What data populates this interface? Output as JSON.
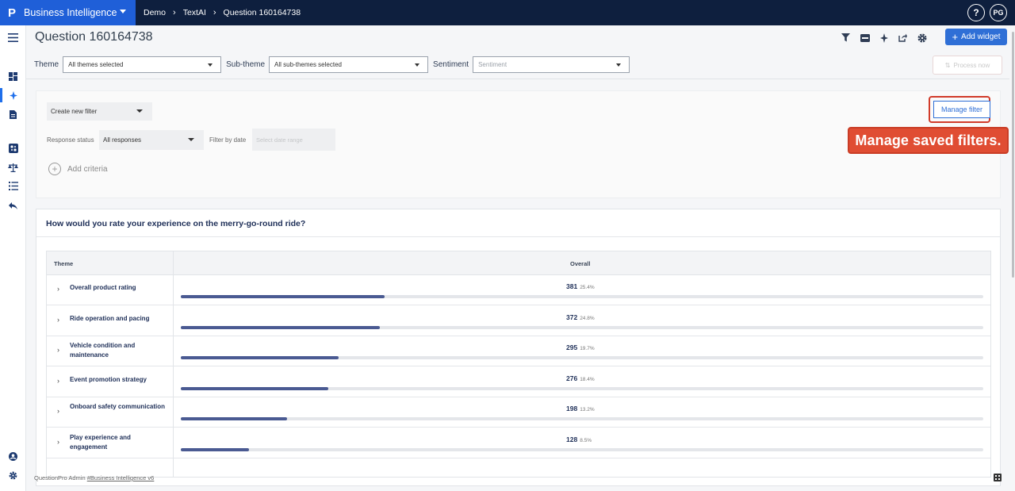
{
  "topbar": {
    "logo": "P",
    "app_name": "Business Intelligence",
    "breadcrumbs": [
      "Demo",
      "TextAI",
      "Question 160164738"
    ],
    "help": "?",
    "avatar": "PG"
  },
  "sidebar": {
    "icons": [
      "menu-icon",
      "dashboard-icon",
      "sparkle-icon",
      "report-icon",
      "ml-icon",
      "scale-icon",
      "list-icon",
      "back-icon",
      "admin-icon",
      "settings-icon"
    ]
  },
  "header": {
    "title": "Question 160164738",
    "add_widget": "Add widget",
    "process_now": "Process now",
    "toolbar_icons": [
      "filter-icon",
      "csv-icon",
      "sparkle-icon",
      "share-icon",
      "gear-icon"
    ]
  },
  "filters": {
    "theme_label": "Theme",
    "theme_value": "All themes selected",
    "subtheme_label": "Sub-theme",
    "subtheme_value": "All sub-themes selected",
    "sentiment_label": "Sentiment",
    "sentiment_placeholder": "Sentiment"
  },
  "filter_panel": {
    "create_new": "Create new filter",
    "response_status_label": "Response status",
    "response_status_value": "All responses",
    "filter_by_date_label": "Filter by date",
    "date_placeholder": "Select date range",
    "add_criteria": "Add criteria",
    "manage_filter": "Manage filter",
    "tooltip": "Manage saved filters."
  },
  "card": {
    "title": "How would you rate your experience on the merry-go-round ride?",
    "columns": [
      "Theme",
      "Overall"
    ],
    "rows": [
      {
        "label": "Overall product rating",
        "count": "381",
        "pct": "25.4%",
        "fraction": 0.254
      },
      {
        "label": "Ride operation and pacing",
        "count": "372",
        "pct": "24.8%",
        "fraction": 0.248
      },
      {
        "label": "Vehicle condition and maintenance",
        "count": "295",
        "pct": "19.7%",
        "fraction": 0.197
      },
      {
        "label": "Event promotion strategy",
        "count": "276",
        "pct": "18.4%",
        "fraction": 0.184
      },
      {
        "label": "Onboard safety communication",
        "count": "198",
        "pct": "13.2%",
        "fraction": 0.132
      },
      {
        "label": "Play experience and engagement",
        "count": "128",
        "pct": "8.5%",
        "fraction": 0.085
      }
    ]
  },
  "footer": {
    "prefix": "QuestionPro Admin",
    "link": "#Business Intelligence v6"
  },
  "colors": {
    "topbar": "#0e1f3e",
    "brand": "#1f5fd8",
    "accent": "#2f6fd6",
    "bar_fill": "#4a5a92",
    "highlight": "#e04d33"
  }
}
